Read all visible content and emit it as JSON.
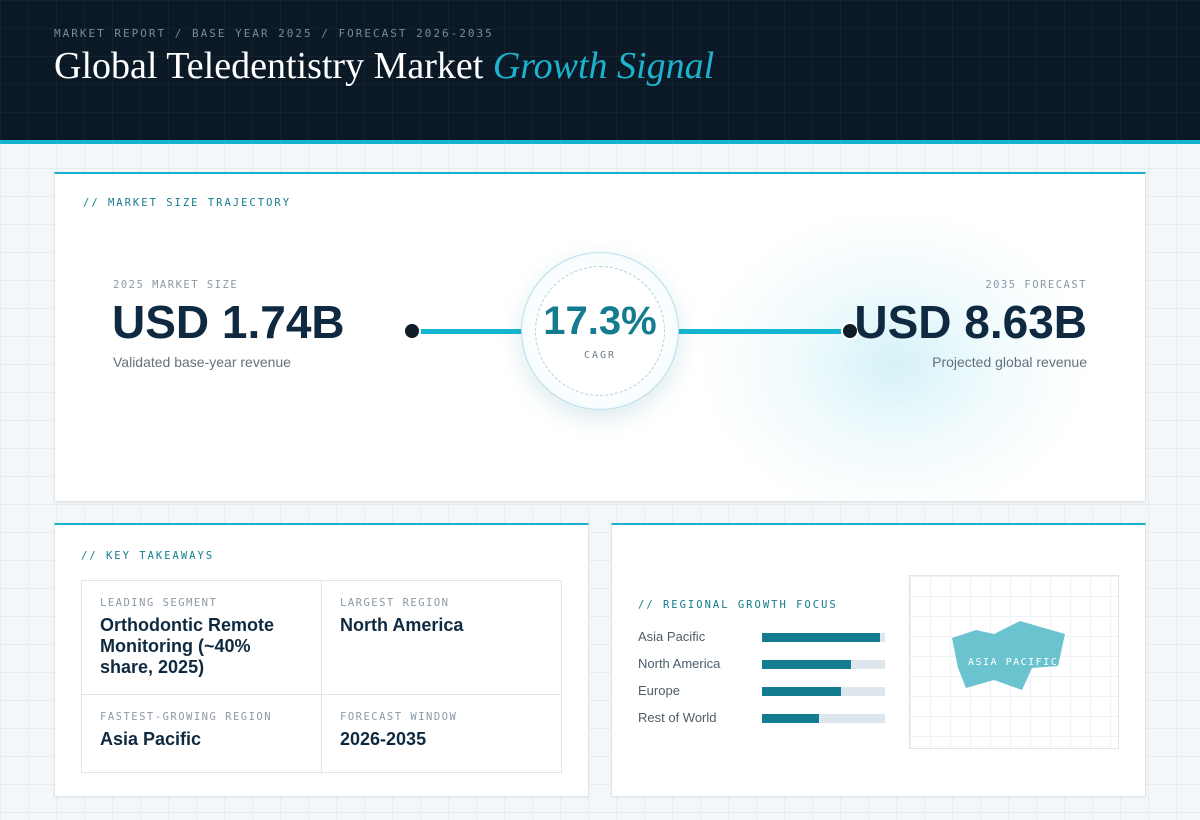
{
  "header": {
    "breadcrumb": "MARKET REPORT / BASE YEAR 2025 / FORECAST 2026-2035",
    "title_main": "Global Teledentistry Market",
    "title_accent": "Growth Signal"
  },
  "trajectory": {
    "section_label": "// MARKET SIZE TRAJECTORY",
    "start": {
      "label": "2025 MARKET SIZE",
      "value": "USD 1.74B",
      "caption": "Validated base-year revenue"
    },
    "end": {
      "label": "2035 FORECAST",
      "value": "USD 8.63B",
      "caption": "Projected global revenue"
    },
    "cagr": {
      "value": "17.3%",
      "label": "CAGR"
    }
  },
  "takeaways": {
    "section_label": "// KEY TAKEAWAYS",
    "items": [
      {
        "key": "LEADING SEGMENT",
        "value": "Orthodontic Remote Monitoring (~40% share, 2025)"
      },
      {
        "key": "LARGEST REGION",
        "value": "North America"
      },
      {
        "key": "FASTEST-GROWING REGION",
        "value": "Asia Pacific"
      },
      {
        "key": "FORECAST WINDOW",
        "value": "2026-2035"
      }
    ]
  },
  "regional": {
    "section_label": "// REGIONAL GROWTH FOCUS",
    "bars": [
      {
        "name": "Asia Pacific",
        "level": 0.96
      },
      {
        "name": "North America",
        "level": 0.72
      },
      {
        "name": "Europe",
        "level": 0.64
      },
      {
        "name": "Rest of World",
        "level": 0.46
      }
    ],
    "map_label": "ASIA PACIFIC"
  },
  "colors": {
    "accent": "#13b6d1",
    "teal_dark": "#137c8e",
    "navy": "#0b1826",
    "map_fill": "#6cc3d0"
  }
}
